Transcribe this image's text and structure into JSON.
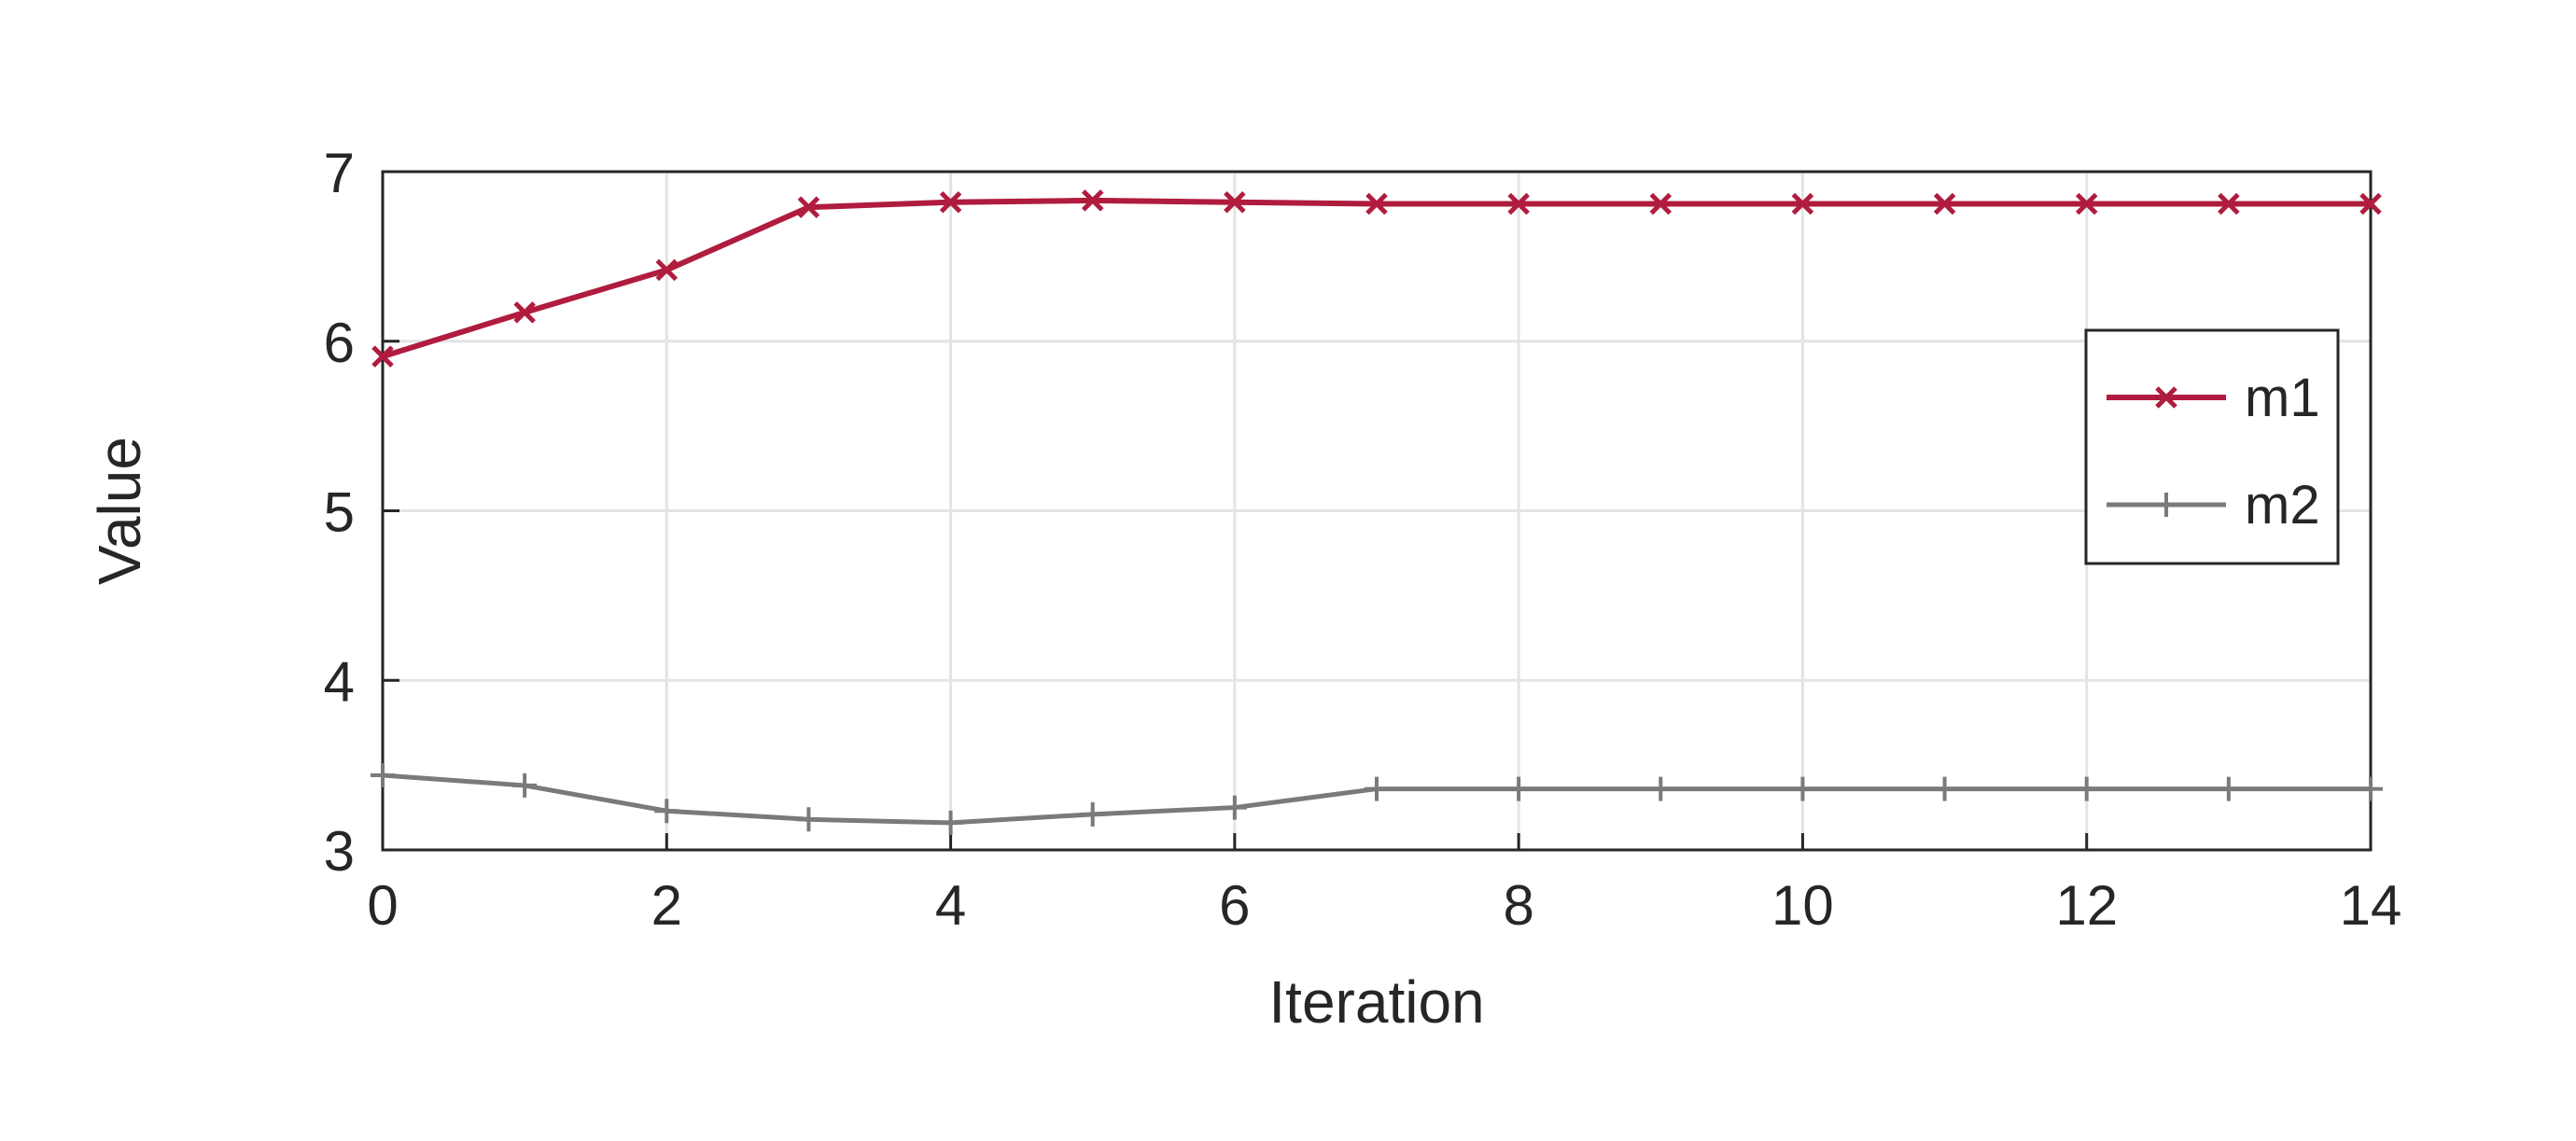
{
  "chart_data": {
    "type": "line",
    "title": "",
    "xlabel": "Iteration",
    "ylabel": "Value",
    "xlim": [
      0,
      14
    ],
    "ylim": [
      3,
      7
    ],
    "xticks": [
      0,
      2,
      4,
      6,
      8,
      10,
      12,
      14
    ],
    "yticks": [
      3,
      4,
      5,
      6,
      7
    ],
    "grid": true,
    "legend_position": "right",
    "x": [
      0,
      1,
      2,
      3,
      4,
      5,
      6,
      7,
      8,
      9,
      10,
      11,
      12,
      13,
      14
    ],
    "series": [
      {
        "name": "m1",
        "color": "#b01c3e",
        "marker": "x",
        "values": [
          5.91,
          6.17,
          6.42,
          6.79,
          6.82,
          6.83,
          6.82,
          6.81,
          6.81,
          6.81,
          6.81,
          6.81,
          6.81,
          6.81,
          6.81
        ]
      },
      {
        "name": "m2",
        "color": "#7a7a7a",
        "marker": "+",
        "values": [
          3.44,
          3.38,
          3.23,
          3.18,
          3.16,
          3.21,
          3.25,
          3.36,
          3.36,
          3.36,
          3.36,
          3.36,
          3.36,
          3.36,
          3.36
        ]
      }
    ]
  }
}
